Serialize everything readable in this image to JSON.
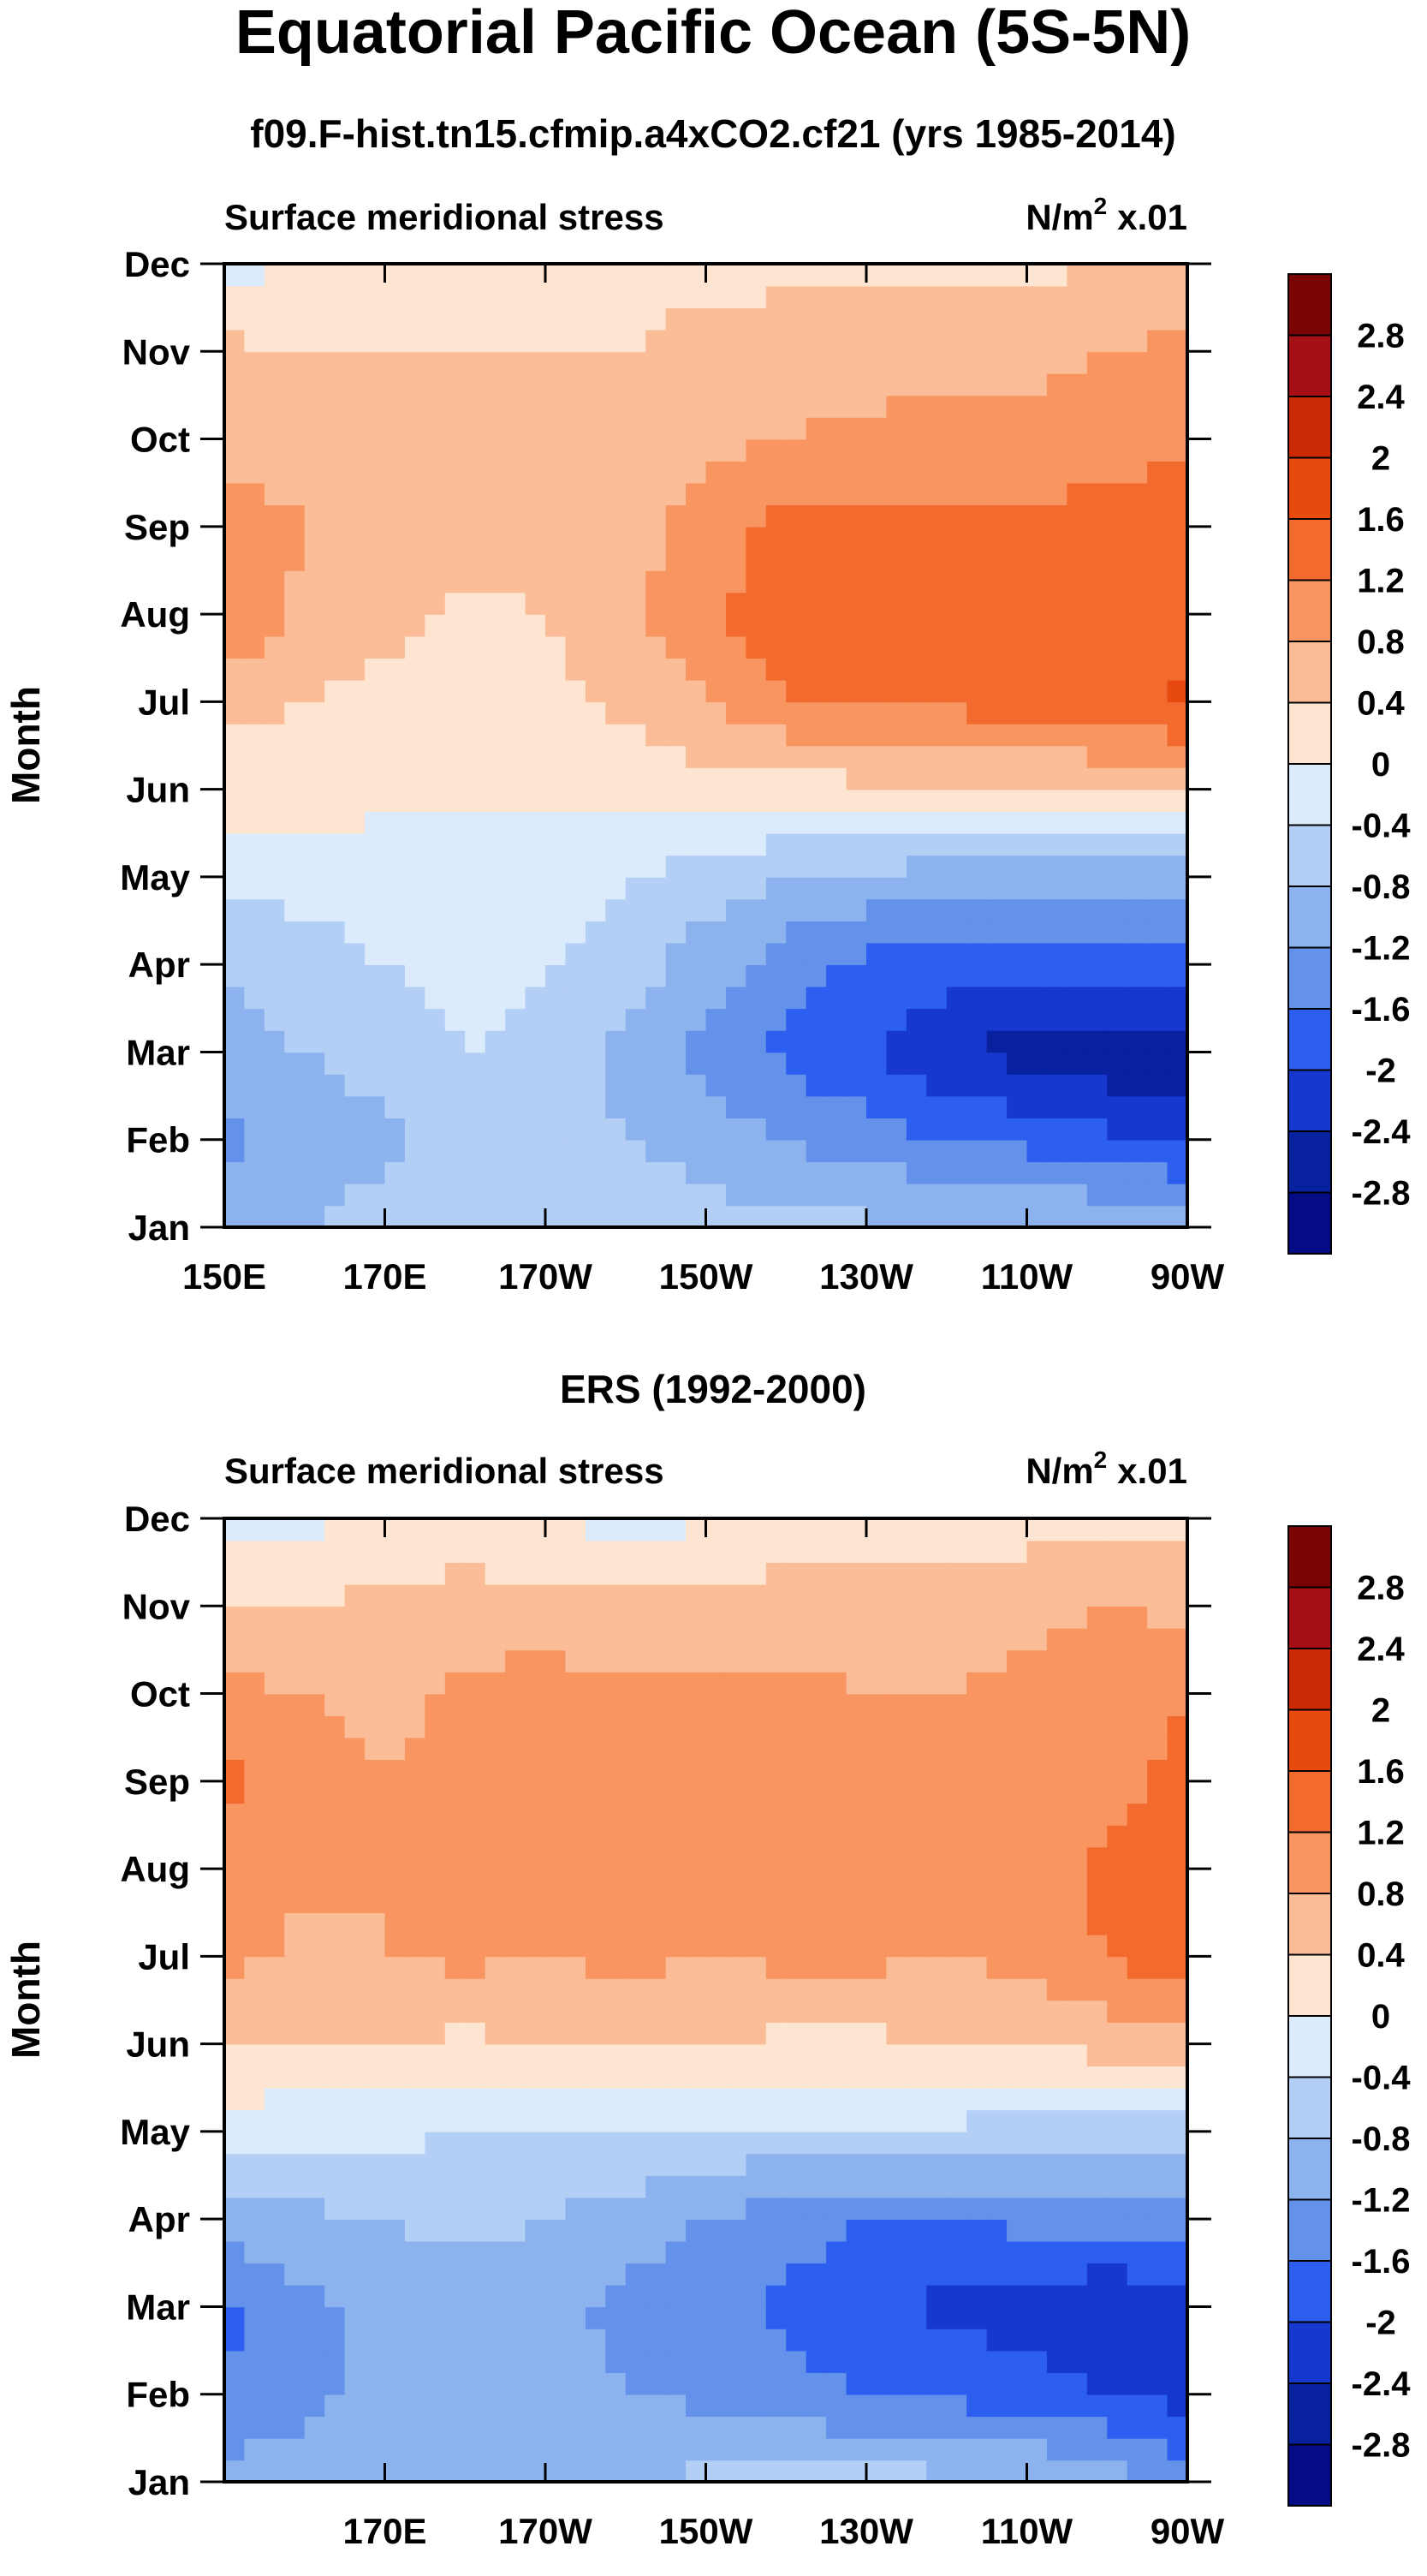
{
  "figure": {
    "title": "Equatorial Pacific Ocean (5S-5N)"
  },
  "colorbar": {
    "labels": [
      "2.8",
      "2.4",
      "2",
      "1.6",
      "1.2",
      "0.8",
      "0.4",
      "0",
      "-0.4",
      "-0.8",
      "-1.2",
      "-1.6",
      "-2",
      "-2.4",
      "-2.8"
    ],
    "colors": [
      "#7a0403",
      "#a50f15",
      "#cb2a04",
      "#e8490f",
      "#f26a2d",
      "#f99560",
      "#fbbd98",
      "#fde5d1",
      "#dcebfb",
      "#b4cff5",
      "#8db3ef",
      "#6491ea",
      "#2c5ef0",
      "#1638cf",
      "#08219f",
      "#050b85"
    ]
  },
  "chart_data": [
    {
      "type": "heatmap",
      "title": "f09.F-hist.tn15.cfmip.a4xCO2.cf21 (yrs 1985-2014)",
      "left_label": "Surface meridional stress",
      "right_label": "N/m",
      "right_label_sup": "2",
      "right_label_scale": "x.01",
      "ylabel": "Month",
      "xlabel": "",
      "x_ticks": [
        "150E",
        "170E",
        "170W",
        "150W",
        "130W",
        "110W",
        "90W"
      ],
      "y_ticks": [
        "Jan",
        "Feb",
        "Mar",
        "Apr",
        "May",
        "Jun",
        "Jul",
        "Aug",
        "Sep",
        "Oct",
        "Nov",
        "Dec"
      ],
      "lon_range": [
        150,
        270
      ],
      "months": [
        "Jan",
        "Feb",
        "Mar",
        "Apr",
        "May",
        "Jun",
        "Jul",
        "Aug",
        "Sep",
        "Oct",
        "Nov",
        "Dec"
      ],
      "lons": [
        150,
        160,
        170,
        180,
        190,
        200,
        210,
        220,
        230,
        240,
        250,
        260,
        270
      ],
      "values": [
        [
          -1.0,
          -0.8,
          -0.6,
          -0.5,
          -0.5,
          -0.5,
          -0.6,
          -0.7,
          -0.7,
          -0.8,
          -0.8,
          -0.8,
          -0.9
        ],
        [
          -1.3,
          -1.0,
          -0.9,
          -0.6,
          -0.7,
          -0.8,
          -1.0,
          -1.2,
          -1.4,
          -1.6,
          -1.7,
          -1.9,
          -2.1
        ],
        [
          -1.0,
          -0.8,
          -0.6,
          -0.4,
          -0.5,
          -0.9,
          -1.3,
          -1.7,
          -2.0,
          -2.3,
          -2.6,
          -2.7,
          -2.7
        ],
        [
          -0.8,
          -0.6,
          -0.4,
          -0.3,
          -0.4,
          -0.6,
          -1.0,
          -1.4,
          -1.7,
          -1.8,
          -1.9,
          -1.8,
          -1.7
        ],
        [
          -0.3,
          -0.2,
          -0.2,
          -0.1,
          -0.2,
          -0.4,
          -0.6,
          -0.8,
          -0.9,
          -1.0,
          -1.0,
          -1.0,
          -1.0
        ],
        [
          0.2,
          0.2,
          0.1,
          0.05,
          0.05,
          0.1,
          0.2,
          0.2,
          0.3,
          0.3,
          0.3,
          0.4,
          0.5
        ],
        [
          0.5,
          0.4,
          0.3,
          0.3,
          0.3,
          0.5,
          0.8,
          1.2,
          1.3,
          1.3,
          1.4,
          1.5,
          1.7
        ],
        [
          1.2,
          0.7,
          0.5,
          0.3,
          0.4,
          0.7,
          1.1,
          1.5,
          1.6,
          1.4,
          1.4,
          1.4,
          1.4
        ],
        [
          1.1,
          0.8,
          0.6,
          0.6,
          0.5,
          0.6,
          1.0,
          1.3,
          1.3,
          1.3,
          1.3,
          1.4,
          1.3
        ],
        [
          0.6,
          0.6,
          0.6,
          0.5,
          0.5,
          0.6,
          0.7,
          0.8,
          0.9,
          0.9,
          0.9,
          1.0,
          1.2
        ],
        [
          0.5,
          0.4,
          0.4,
          0.4,
          0.4,
          0.4,
          0.5,
          0.6,
          0.6,
          0.7,
          0.7,
          0.8,
          0.9
        ],
        [
          -0.2,
          0.1,
          0.2,
          0.2,
          0.3,
          0.3,
          0.3,
          0.3,
          0.3,
          0.3,
          0.3,
          0.4,
          0.4
        ]
      ]
    },
    {
      "type": "heatmap",
      "title": "ERS (1992-2000)",
      "left_label": "Surface meridional stress",
      "right_label": "N/m",
      "right_label_sup": "2",
      "right_label_scale": "x.01",
      "ylabel": "Month",
      "xlabel": "",
      "x_ticks": [
        "",
        "170E",
        "170W",
        "150W",
        "130W",
        "110W",
        "90W"
      ],
      "y_ticks": [
        "Jan",
        "Feb",
        "Mar",
        "Apr",
        "May",
        "Jun",
        "Jul",
        "Aug",
        "Sep",
        "Oct",
        "Nov",
        "Dec"
      ],
      "lon_range": [
        150,
        270
      ],
      "months": [
        "Jan",
        "Feb",
        "Mar",
        "Apr",
        "May",
        "Jun",
        "Jul",
        "Aug",
        "Sep",
        "Oct",
        "Nov",
        "Dec"
      ],
      "lons": [
        150,
        160,
        170,
        180,
        190,
        200,
        210,
        220,
        230,
        240,
        250,
        260,
        270
      ],
      "values": [
        [
          -1.0,
          -1.0,
          -0.9,
          -0.8,
          -0.8,
          -0.8,
          -0.7,
          -0.6,
          -0.6,
          -0.7,
          -0.8,
          -0.9,
          -1.5
        ],
        [
          -1.6,
          -1.3,
          -1.1,
          -1.0,
          -1.0,
          -1.2,
          -1.3,
          -1.5,
          -1.6,
          -1.7,
          -1.8,
          -2.0,
          -2.1
        ],
        [
          -1.7,
          -1.3,
          -1.1,
          -1.0,
          -1.1,
          -1.3,
          -1.4,
          -1.7,
          -1.9,
          -2.1,
          -2.2,
          -2.4,
          -2.2
        ],
        [
          -1.0,
          -0.9,
          -0.8,
          -0.7,
          -0.8,
          -1.0,
          -1.2,
          -1.4,
          -1.6,
          -1.6,
          -1.5,
          -1.4,
          -1.3
        ],
        [
          -0.2,
          -0.3,
          -0.3,
          -0.4,
          -0.4,
          -0.4,
          -0.5,
          -0.5,
          -0.5,
          -0.5,
          -0.6,
          -0.7,
          -0.7
        ],
        [
          0.4,
          0.4,
          0.4,
          0.3,
          0.4,
          0.4,
          0.4,
          0.3,
          0.3,
          0.4,
          0.4,
          0.6,
          0.6
        ],
        [
          0.9,
          0.7,
          0.8,
          0.9,
          0.8,
          0.9,
          0.8,
          0.9,
          0.9,
          0.8,
          0.9,
          1.2,
          1.5
        ],
        [
          1.1,
          0.9,
          0.8,
          1.0,
          1.0,
          1.0,
          1.0,
          0.9,
          0.9,
          0.9,
          1.0,
          1.3,
          1.3
        ],
        [
          1.3,
          1.0,
          0.8,
          0.9,
          1.1,
          1.0,
          1.0,
          1.0,
          1.0,
          0.9,
          1.0,
          1.1,
          1.3
        ],
        [
          0.9,
          0.8,
          0.7,
          0.9,
          1.0,
          0.9,
          0.9,
          0.9,
          0.8,
          0.8,
          0.9,
          1.0,
          1.2
        ],
        [
          0.4,
          0.4,
          0.5,
          0.6,
          0.5,
          0.5,
          0.5,
          0.6,
          0.7,
          0.6,
          0.7,
          0.8,
          0.7
        ],
        [
          -0.2,
          -0.1,
          0.0,
          0.1,
          0.1,
          -0.2,
          0.0,
          0.1,
          0.2,
          0.2,
          0.2,
          0.3,
          0.2
        ]
      ]
    }
  ]
}
